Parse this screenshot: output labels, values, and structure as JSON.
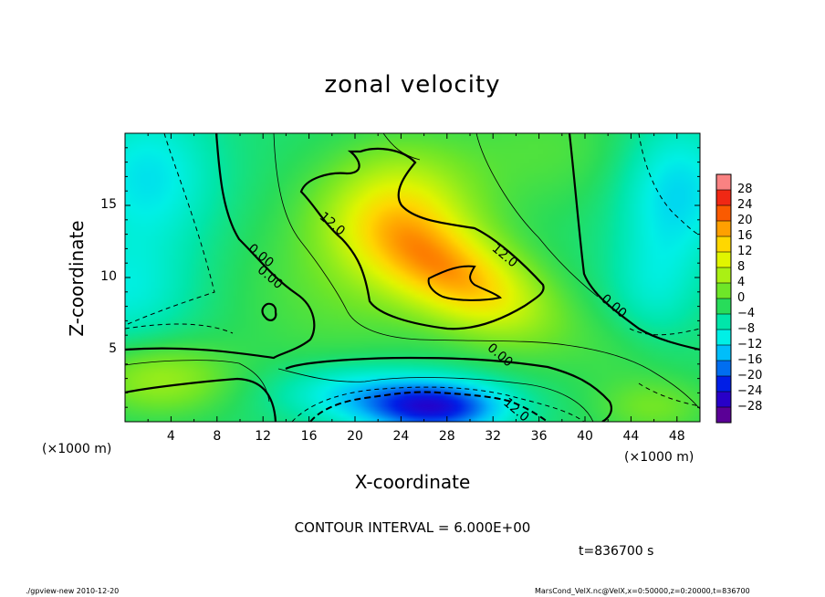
{
  "chart_data": {
    "type": "heatmap",
    "title": "zonal velocity",
    "xlabel": "X-coordinate",
    "ylabel": "Z-coordinate",
    "x_unit_label": "(×1000 m)",
    "xlim": [
      0,
      50
    ],
    "ylim": [
      0,
      20
    ],
    "xticks": [
      "4",
      "8",
      "12",
      "16",
      "20",
      "24",
      "28",
      "32",
      "36",
      "40",
      "44",
      "48"
    ],
    "xtick_values": [
      4,
      8,
      12,
      16,
      20,
      24,
      28,
      32,
      36,
      40,
      44,
      48
    ],
    "yticks": [
      "5",
      "10",
      "15"
    ],
    "ytick_values": [
      5,
      10,
      15
    ],
    "colorbar": {
      "levels": [
        "28",
        "24",
        "20",
        "16",
        "12",
        "8",
        "4",
        "0",
        "−4",
        "−8",
        "−12",
        "−16",
        "−20",
        "−24",
        "−28"
      ],
      "level_values": [
        28,
        24,
        20,
        16,
        12,
        8,
        4,
        0,
        -4,
        -8,
        -12,
        -16,
        -20,
        -24,
        -28
      ]
    },
    "contour_labels": [
      {
        "text": "12.0",
        "x": 18.0,
        "z": 13.7
      },
      {
        "text": "12.0",
        "x": 33.0,
        "z": 11.5
      },
      {
        "text": "0.00",
        "x": 11.8,
        "z": 11.5
      },
      {
        "text": "0.00",
        "x": 12.6,
        "z": 10.0
      },
      {
        "text": "0.00",
        "x": 42.5,
        "z": 8.0
      },
      {
        "text": "0.00",
        "x": 32.6,
        "z": 4.6
      },
      {
        "text": "12.0",
        "x": 34.0,
        "z": 0.8
      }
    ],
    "contour_interval_text": "CONTOUR INTERVAL = 6.000E+00",
    "time_text": "t=836700 s"
  },
  "footer": {
    "left": "./gpview-new  2010-12-20",
    "right": "MarsCond_VelX.nc@VelX,x=0:50000,z=0:20000,t=836700"
  },
  "colors": {
    "background": "#ffffff",
    "frame": "#000000"
  }
}
